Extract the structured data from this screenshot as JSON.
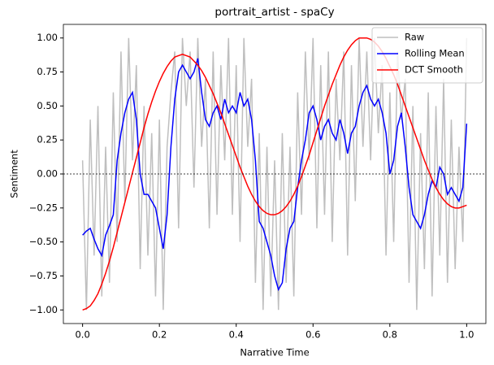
{
  "chart_data": {
    "type": "line",
    "title": "portrait_artist - spaCy",
    "x_label": "Narrative Time",
    "y_label": "Sentiment",
    "x": [
      0,
      0.01,
      0.02,
      0.03,
      0.04,
      0.05,
      0.06,
      0.07,
      0.08,
      0.09,
      0.1,
      0.11,
      0.12,
      0.13,
      0.14,
      0.15,
      0.16,
      0.17,
      0.18,
      0.19,
      0.2,
      0.21,
      0.22,
      0.23,
      0.24,
      0.25,
      0.26,
      0.27,
      0.28,
      0.29,
      0.3,
      0.31,
      0.32,
      0.33,
      0.34,
      0.35,
      0.36,
      0.37,
      0.38,
      0.39,
      0.4,
      0.41,
      0.42,
      0.43,
      0.44,
      0.45,
      0.46,
      0.47,
      0.48,
      0.49,
      0.5,
      0.51,
      0.52,
      0.53,
      0.54,
      0.55,
      0.56,
      0.57,
      0.58,
      0.59,
      0.6,
      0.61,
      0.62,
      0.63,
      0.64,
      0.65,
      0.66,
      0.67,
      0.68,
      0.69,
      0.7,
      0.71,
      0.72,
      0.73,
      0.74,
      0.75,
      0.76,
      0.77,
      0.78,
      0.79,
      0.8,
      0.81,
      0.82,
      0.83,
      0.84,
      0.85,
      0.86,
      0.87,
      0.88,
      0.89,
      0.9,
      0.91,
      0.92,
      0.93,
      0.94,
      0.95,
      0.96,
      0.97,
      0.98,
      0.99,
      1
    ],
    "series": [
      {
        "name": "Raw",
        "color": "#bfbfbf",
        "values": [
          0.1,
          -1.0,
          0.4,
          -0.6,
          0.5,
          -0.9,
          0.2,
          -0.8,
          0.6,
          -0.5,
          0.9,
          -0.2,
          1.0,
          0.1,
          0.8,
          -0.7,
          0.5,
          -0.6,
          0.3,
          -0.9,
          0.4,
          -1.0,
          0.2,
          0.6,
          0.9,
          -0.4,
          1.0,
          0.5,
          0.9,
          -0.1,
          1.0,
          0.2,
          0.7,
          -0.4,
          0.9,
          -0.3,
          0.8,
          0.1,
          1.0,
          -0.3,
          0.8,
          -0.5,
          1.0,
          0.2,
          0.7,
          -0.8,
          0.3,
          -1.0,
          0.2,
          -0.9,
          0.1,
          -1.0,
          0.3,
          -0.8,
          0.2,
          -0.9,
          0.6,
          -0.3,
          0.9,
          0.1,
          1.0,
          -0.4,
          0.8,
          -0.3,
          0.9,
          -0.5,
          0.7,
          0.1,
          0.9,
          -0.6,
          0.8,
          -0.2,
          1.0,
          0.2,
          0.9,
          0.1,
          1.0,
          0.3,
          0.8,
          -0.6,
          0.6,
          -0.5,
          0.9,
          0.4,
          0.7,
          -0.8,
          0.5,
          -1.0,
          0.3,
          -0.7,
          0.6,
          -0.9,
          0.5,
          -0.6,
          0.7,
          -0.8,
          0.4,
          -0.7,
          0.2,
          -0.5,
          1.0
        ]
      },
      {
        "name": "Rolling Mean",
        "color": "#0000ff",
        "values": [
          -0.45,
          -0.42,
          -0.4,
          -0.48,
          -0.55,
          -0.6,
          -0.45,
          -0.38,
          -0.3,
          0.1,
          0.3,
          0.45,
          0.55,
          0.6,
          0.4,
          0.0,
          -0.15,
          -0.15,
          -0.2,
          -0.25,
          -0.4,
          -0.55,
          -0.3,
          0.2,
          0.55,
          0.75,
          0.8,
          0.75,
          0.7,
          0.75,
          0.85,
          0.6,
          0.4,
          0.35,
          0.45,
          0.5,
          0.4,
          0.55,
          0.45,
          0.5,
          0.45,
          0.6,
          0.5,
          0.55,
          0.4,
          0.1,
          -0.35,
          -0.4,
          -0.5,
          -0.6,
          -0.75,
          -0.85,
          -0.8,
          -0.55,
          -0.4,
          -0.35,
          -0.1,
          0.1,
          0.25,
          0.45,
          0.5,
          0.4,
          0.25,
          0.35,
          0.4,
          0.3,
          0.25,
          0.4,
          0.3,
          0.15,
          0.3,
          0.35,
          0.5,
          0.6,
          0.65,
          0.55,
          0.5,
          0.55,
          0.45,
          0.3,
          0.0,
          0.1,
          0.35,
          0.45,
          0.2,
          -0.1,
          -0.3,
          -0.35,
          -0.4,
          -0.3,
          -0.15,
          -0.05,
          -0.1,
          0.05,
          0.0,
          -0.15,
          -0.1,
          -0.15,
          -0.2,
          -0.1,
          0.37
        ]
      },
      {
        "name": "DCT Smooth",
        "color": "#ff0000",
        "values": [
          -1.0,
          -0.99,
          -0.97,
          -0.93,
          -0.88,
          -0.81,
          -0.73,
          -0.64,
          -0.54,
          -0.43,
          -0.32,
          -0.21,
          -0.1,
          0.01,
          0.12,
          0.23,
          0.34,
          0.44,
          0.53,
          0.61,
          0.68,
          0.74,
          0.79,
          0.83,
          0.86,
          0.87,
          0.88,
          0.87,
          0.86,
          0.83,
          0.8,
          0.76,
          0.71,
          0.65,
          0.59,
          0.52,
          0.45,
          0.37,
          0.29,
          0.21,
          0.13,
          0.05,
          -0.02,
          -0.09,
          -0.15,
          -0.2,
          -0.24,
          -0.27,
          -0.29,
          -0.3,
          -0.3,
          -0.29,
          -0.27,
          -0.24,
          -0.2,
          -0.15,
          -0.09,
          -0.02,
          0.06,
          0.14,
          0.23,
          0.32,
          0.41,
          0.5,
          0.58,
          0.66,
          0.73,
          0.8,
          0.86,
          0.91,
          0.95,
          0.98,
          1.0,
          1.0,
          1.0,
          0.99,
          0.97,
          0.94,
          0.9,
          0.85,
          0.79,
          0.73,
          0.66,
          0.58,
          0.5,
          0.42,
          0.34,
          0.26,
          0.18,
          0.1,
          0.03,
          -0.04,
          -0.1,
          -0.15,
          -0.19,
          -0.22,
          -0.24,
          -0.25,
          -0.25,
          -0.24,
          -0.23
        ]
      }
    ],
    "xlim": [
      -0.05,
      1.05
    ],
    "ylim": [
      -1.1,
      1.1
    ],
    "xticks": [
      {
        "value": 0,
        "label": "0.0"
      },
      0.2,
      0.4,
      0.6,
      0.8,
      {
        "value": 1,
        "label": "1.0"
      }
    ],
    "yticks": [
      {
        "value": -1,
        "label": "−1.00"
      },
      {
        "value": -0.75,
        "label": "−0.75"
      },
      {
        "value": -0.5,
        "label": "−0.50"
      },
      {
        "value": -0.25,
        "label": "−0.25"
      },
      {
        "value": 0,
        "label": "0.00"
      },
      {
        "value": 0.25,
        "label": "0.25"
      },
      {
        "value": 0.5,
        "label": "0.50"
      },
      {
        "value": 0.75,
        "label": "0.75"
      },
      {
        "value": 1,
        "label": "1.00"
      }
    ],
    "zero_line": true,
    "legend": "upper right"
  }
}
